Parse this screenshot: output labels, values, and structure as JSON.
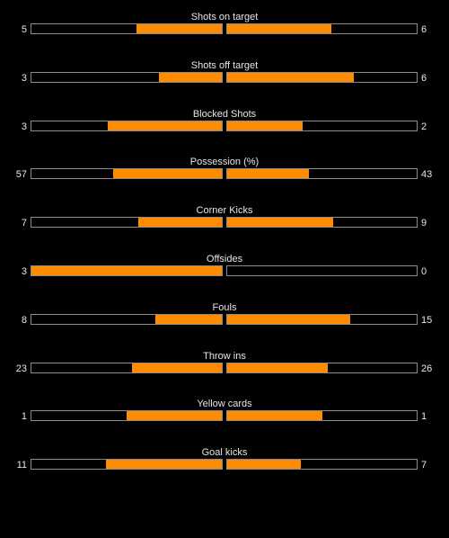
{
  "colors": {
    "background": "#000000",
    "bar_fill": "#ff8c00",
    "bar_border": "#8a8a8a",
    "text": "#e6e6e6"
  },
  "stats": [
    {
      "label": "Shots on target",
      "home": "5",
      "away": "6",
      "home_fraction": 0.45,
      "away_fraction": 0.55
    },
    {
      "label": "Shots off target",
      "home": "3",
      "away": "6",
      "home_fraction": 0.33,
      "away_fraction": 0.67
    },
    {
      "label": "Blocked Shots",
      "home": "3",
      "away": "2",
      "home_fraction": 0.6,
      "away_fraction": 0.4
    },
    {
      "label": "Possession (%)",
      "home": "57",
      "away": "43",
      "home_fraction": 0.57,
      "away_fraction": 0.43
    },
    {
      "label": "Corner Kicks",
      "home": "7",
      "away": "9",
      "home_fraction": 0.44,
      "away_fraction": 0.56
    },
    {
      "label": "Offsides",
      "home": "3",
      "away": "0",
      "home_fraction": 1.0,
      "away_fraction": 0.0
    },
    {
      "label": "Fouls",
      "home": "8",
      "away": "15",
      "home_fraction": 0.35,
      "away_fraction": 0.65
    },
    {
      "label": "Throw ins",
      "home": "23",
      "away": "26",
      "home_fraction": 0.47,
      "away_fraction": 0.53
    },
    {
      "label": "Yellow cards",
      "home": "1",
      "away": "1",
      "home_fraction": 0.5,
      "away_fraction": 0.5
    },
    {
      "label": "Goal kicks",
      "home": "11",
      "away": "7",
      "home_fraction": 0.61,
      "away_fraction": 0.39
    }
  ]
}
